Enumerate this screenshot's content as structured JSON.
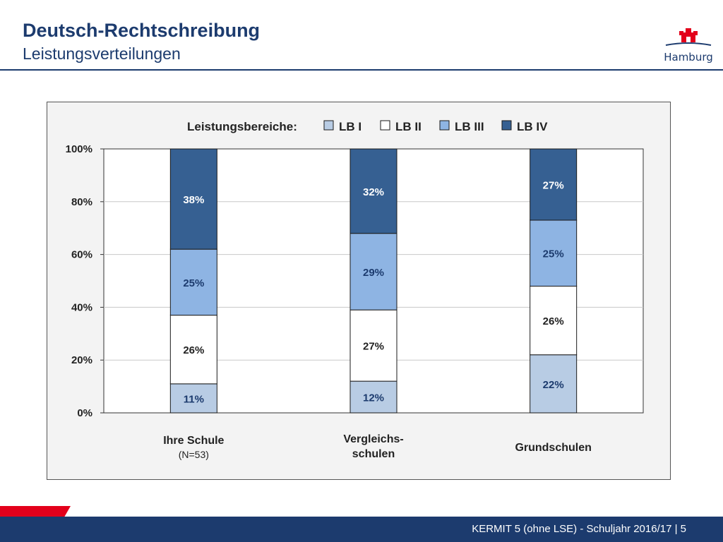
{
  "header": {
    "title": "Deutsch-Rechtschreibung",
    "subtitle": "Leistungsverteilungen",
    "logo_text": "Hamburg"
  },
  "footer": {
    "text": "KERMIT 5 (ohne LSE) - Schuljahr 2016/17 | 5"
  },
  "colors": {
    "brand": "#1c3b6e",
    "accent_red": "#e3001b"
  },
  "chart_data": {
    "type": "bar",
    "stacked": true,
    "legend_title": "Leistungsbereiche:",
    "legend_position": "top",
    "categories": [
      {
        "label": "Ihre Schule",
        "sublabel": "(N=53)"
      },
      {
        "label": "Vergleichs-\nschulen",
        "sublabel": ""
      },
      {
        "label": "Grundschulen",
        "sublabel": ""
      }
    ],
    "series": [
      {
        "name": "LB I",
        "color": "#b8cce4",
        "label_color": "#1c3b6e",
        "values": [
          11,
          12,
          22
        ]
      },
      {
        "name": "LB II",
        "color": "#ffffff",
        "label_color": "#222222",
        "values": [
          26,
          27,
          26
        ]
      },
      {
        "name": "LB III",
        "color": "#8eb4e3",
        "label_color": "#1c3b6e",
        "values": [
          25,
          29,
          25
        ]
      },
      {
        "name": "LB IV",
        "color": "#366092",
        "label_color": "#ffffff",
        "values": [
          38,
          32,
          27
        ]
      }
    ],
    "data_label_suffix": "%",
    "y_ticks": [
      "0%",
      "20%",
      "40%",
      "60%",
      "80%",
      "100%"
    ],
    "ylim": [
      0,
      100
    ],
    "grid": true
  }
}
